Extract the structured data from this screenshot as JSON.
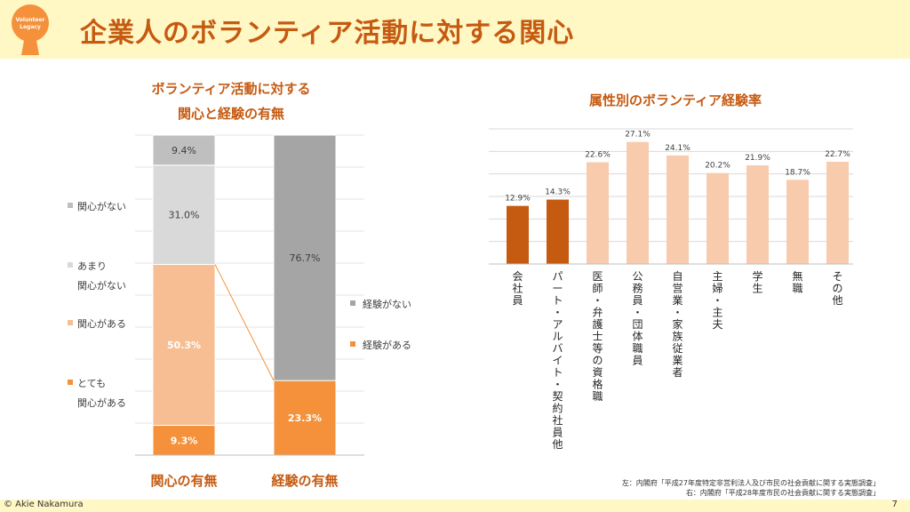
{
  "header": {
    "title": "企業人のボランティア活動に対する関心",
    "logo_text": [
      "Volunteer",
      "Legacy"
    ]
  },
  "footer": {
    "copyright": "© Akie Nakamura",
    "page_number": "7"
  },
  "sources": [
    "左：内閣府「平成27年度特定非営利法人及び市民の社会貢献に関する実態調査」",
    "右：内閣府「平成28年度市民の社会貢献に関する実態調査」"
  ],
  "colors": {
    "accent": "#c55a11",
    "header_bg": "#fff7c4",
    "dark_orange": "#c55a11",
    "light_peach": "#f8cbad",
    "orange": "#f4913a",
    "peach": "#f7be93",
    "gray_light": "#d9d9d9",
    "gray_mid": "#bfbfbf",
    "gray_dark": "#a5a5a5"
  },
  "chart_data": [
    {
      "type": "stacked-bar",
      "title_lines": [
        "ボランティア活動に対する",
        "関心と経験の有無"
      ],
      "ylim": [
        0,
        100
      ],
      "grid": true,
      "categories": [
        "関心の有無",
        "経験の有無"
      ],
      "series": [
        {
          "name": "とても関心がある",
          "name_lines": [
            "とても",
            "関心がある"
          ],
          "values": [
            9.3,
            null
          ],
          "color": "#f4913a"
        },
        {
          "name": "関心がある",
          "name_lines": [
            "関心がある"
          ],
          "values": [
            50.3,
            null
          ],
          "color": "#f7be93"
        },
        {
          "name": "あまり関心がない",
          "name_lines": [
            "あまり",
            "関心がない"
          ],
          "values": [
            31.0,
            null
          ],
          "color": "#d9d9d9"
        },
        {
          "name": "関心がない",
          "name_lines": [
            "関心がない"
          ],
          "values": [
            9.4,
            null
          ],
          "color": "#bfbfbf"
        },
        {
          "name": "経験がある",
          "name_lines": [
            "経験がある"
          ],
          "values": [
            null,
            23.3
          ],
          "color": "#f4913a"
        },
        {
          "name": "経験がない",
          "name_lines": [
            "経験がない"
          ],
          "values": [
            null,
            76.7
          ],
          "color": "#a5a5a5"
        }
      ],
      "data_labels": {
        "とても関心がある": "9.3%",
        "関心がある": "50.3%",
        "あまり関心がない": "31.0%",
        "関心がない": "9.4%",
        "経験がある": "23.3%",
        "経験がない": "76.7%"
      }
    },
    {
      "type": "bar",
      "title": "属性別のボランティア経験率",
      "ylim": [
        0,
        30
      ],
      "grid": true,
      "categories": [
        "会社員",
        "パート・アルバイト・契約社員他",
        "医師・弁護士等の資格職",
        "公務員・団体職員",
        "自営業・家族従業者",
        "主婦・主夫",
        "学生",
        "無職",
        "その他"
      ],
      "values": [
        12.9,
        14.3,
        22.6,
        27.1,
        24.1,
        20.2,
        21.9,
        18.7,
        22.7
      ],
      "value_labels": [
        "12.9%",
        "14.3%",
        "22.6%",
        "27.1%",
        "24.1%",
        "20.2%",
        "21.9%",
        "18.7%",
        "22.7%"
      ],
      "bar_colors": [
        "#c55a11",
        "#c55a11",
        "#f8cbad",
        "#f8cbad",
        "#f8cbad",
        "#f8cbad",
        "#f8cbad",
        "#f8cbad",
        "#f8cbad"
      ]
    }
  ]
}
